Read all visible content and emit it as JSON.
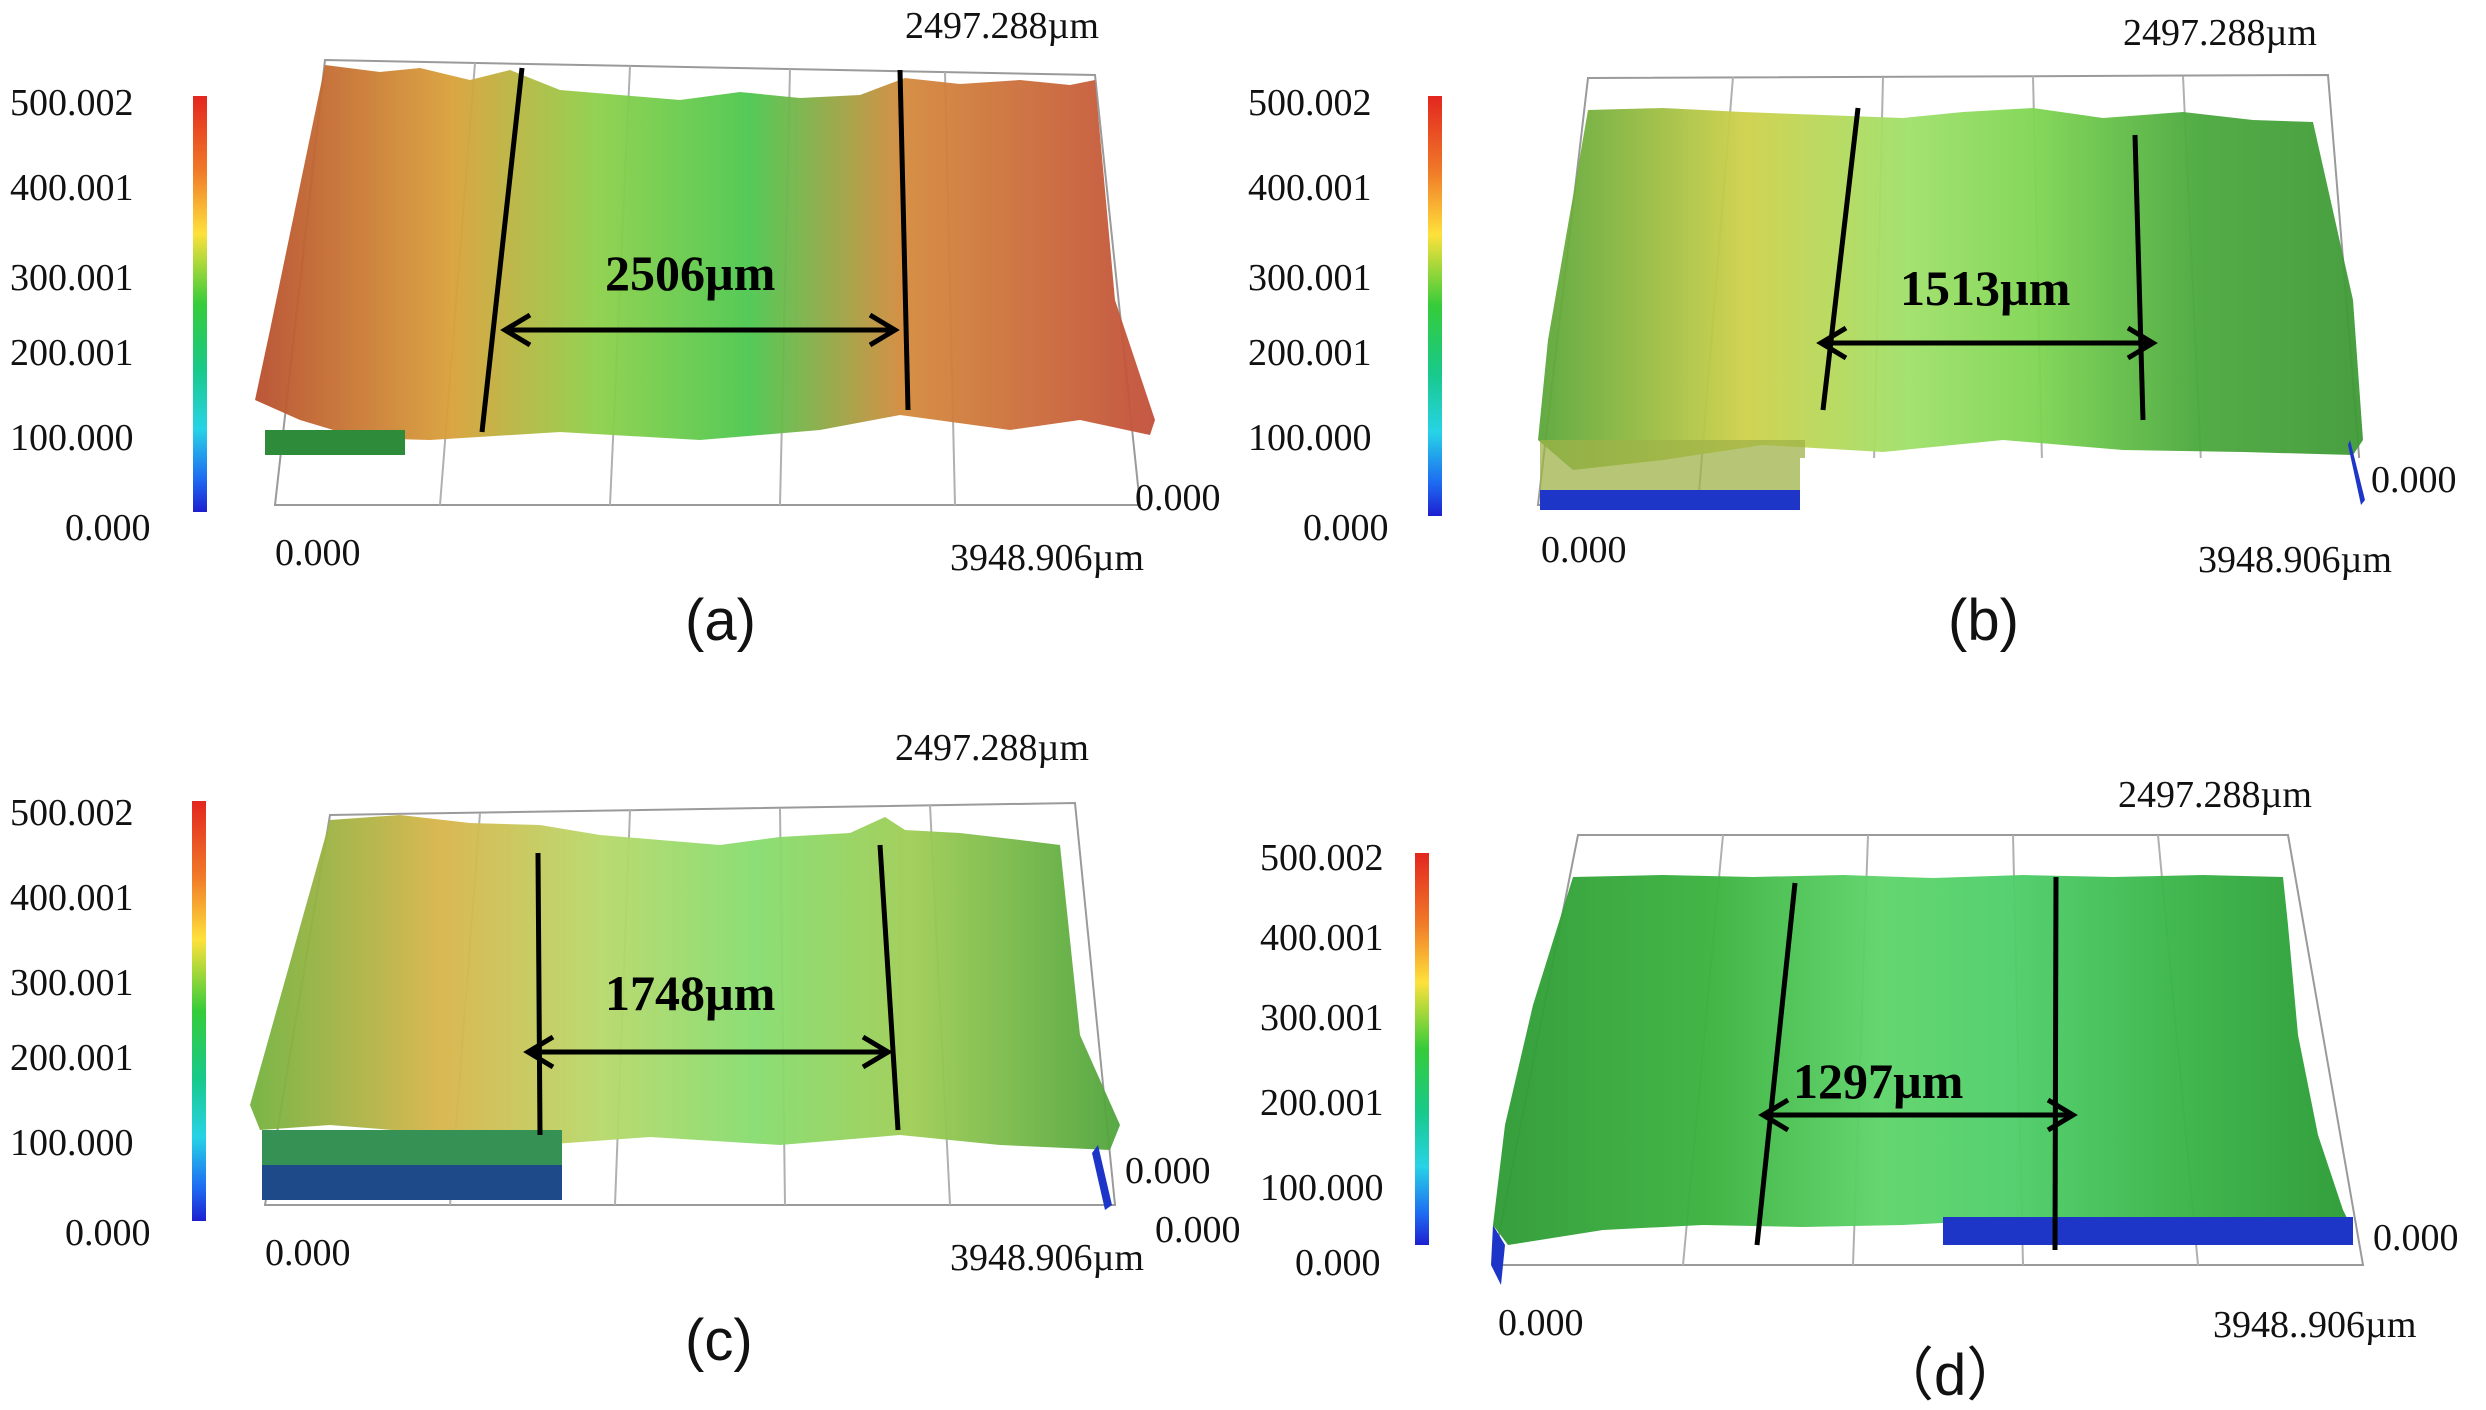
{
  "colorbar": {
    "ticks": [
      "500.002",
      "400.001",
      "300.001",
      "200.001",
      "100.000",
      "0.000"
    ],
    "colors": [
      "#d7191c",
      "#f46d2d",
      "#ffe13b",
      "#5fd13a",
      "#12c84a",
      "#27d9d9",
      "#1e6cf2",
      "#1e1fd0"
    ]
  },
  "panels": [
    {
      "id": "a",
      "caption": "(a)",
      "y_max_label": "2497.288µm",
      "x_min_label": "0.000",
      "x_max_label": "3948.906µm",
      "z_min_labels": [
        "0.000"
      ],
      "measurement": "2506µm",
      "surface_colors": [
        "#b84e2e",
        "#d9a13a",
        "#8dd04a",
        "#4cc74f",
        "#d48a3c",
        "#c24f3a"
      ]
    },
    {
      "id": "b",
      "caption": "(b)",
      "y_max_label": "2497.288µm",
      "x_min_label": "0.000",
      "x_max_label": "3948.906µm",
      "z_min_labels": [
        "0.000"
      ],
      "measurement": "1513µm",
      "surface_colors": [
        "#5aa63a",
        "#cfd04a",
        "#9fe06a",
        "#7fd653",
        "#4aa83d",
        "#3f9a36"
      ]
    },
    {
      "id": "c",
      "caption": "(c)",
      "y_max_label": "2497.288µm",
      "x_min_label": "0.000",
      "x_max_label": "3948.906µm",
      "z_min_labels": [
        "0.000",
        "0.000"
      ],
      "measurement": "1748µm",
      "surface_colors": [
        "#73b23e",
        "#d8b44a",
        "#b8d86a",
        "#86dc6f",
        "#9fcd55",
        "#4fa43c"
      ]
    },
    {
      "id": "d",
      "caption": "（d）",
      "y_max_label": "2497.288µm",
      "x_min_label": "0.000",
      "x_max_label": "3948..906µm",
      "z_min_labels": [
        "0.000"
      ],
      "measurement": "1297µm",
      "surface_colors": [
        "#2f9b35",
        "#3bb23f",
        "#5fd46a",
        "#4fcf6b",
        "#3ab448",
        "#2a9a34"
      ]
    }
  ]
}
